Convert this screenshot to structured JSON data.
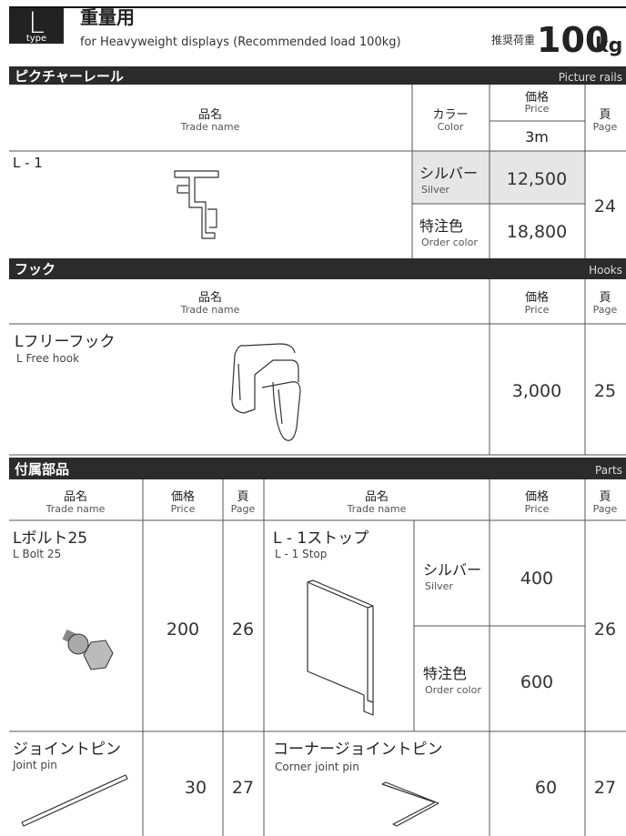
{
  "header": {
    "type_letter": "L",
    "type_label": "type",
    "title": "重量用",
    "subtitle": "for Heavyweight displays (Recommended load 100kg)",
    "load_label": "推奨荷重",
    "load_value": "100",
    "load_unit": "kg"
  },
  "picture_rails": {
    "title": "ピクチャーレール",
    "title_en": "Picture rails",
    "headers": {
      "name": "品名",
      "name_en": "Trade name",
      "color": "カラー",
      "color_en": "Color",
      "price": "価格",
      "price_en": "Price",
      "length": "3m",
      "page": "頁",
      "page_en": "Page"
    },
    "item": {
      "name": "L - 1",
      "page": "24",
      "variants": [
        {
          "color": "シルバー",
          "color_en": "Silver",
          "price": "12,500"
        },
        {
          "color": "特注色",
          "color_en": "Order color",
          "price": "18,800"
        }
      ]
    }
  },
  "hooks": {
    "title": "フック",
    "title_en": "Hooks",
    "headers": {
      "name": "品名",
      "name_en": "Trade name",
      "price": "価格",
      "price_en": "Price",
      "page": "頁",
      "page_en": "Page"
    },
    "item": {
      "name": "Lフリーフック",
      "name_en": "L Free hook",
      "price": "3,000",
      "page": "25"
    }
  },
  "parts": {
    "title": "付属部品",
    "title_en": "Parts",
    "headers": {
      "name": "品名",
      "name_en": "Trade name",
      "price": "価格",
      "price_en": "Price",
      "page": "頁",
      "page_en": "Page"
    },
    "items": [
      {
        "name": "Lボルト25",
        "name_en": "L Bolt 25",
        "price": "200",
        "page": "26"
      },
      {
        "name": "L - 1ストップ",
        "name_en": "L - 1 Stop",
        "page": "26",
        "variants": [
          {
            "color": "シルバー",
            "color_en": "Silver",
            "price": "400"
          },
          {
            "color": "特注色",
            "color_en": "Order color",
            "price": "600"
          }
        ]
      },
      {
        "name": "ジョイントピン",
        "name_en": "Joint pin",
        "price": "30",
        "page": "27"
      },
      {
        "name": "コーナージョイントピン",
        "name_en": "Corner joint pin",
        "price": "60",
        "page": "27"
      }
    ]
  }
}
